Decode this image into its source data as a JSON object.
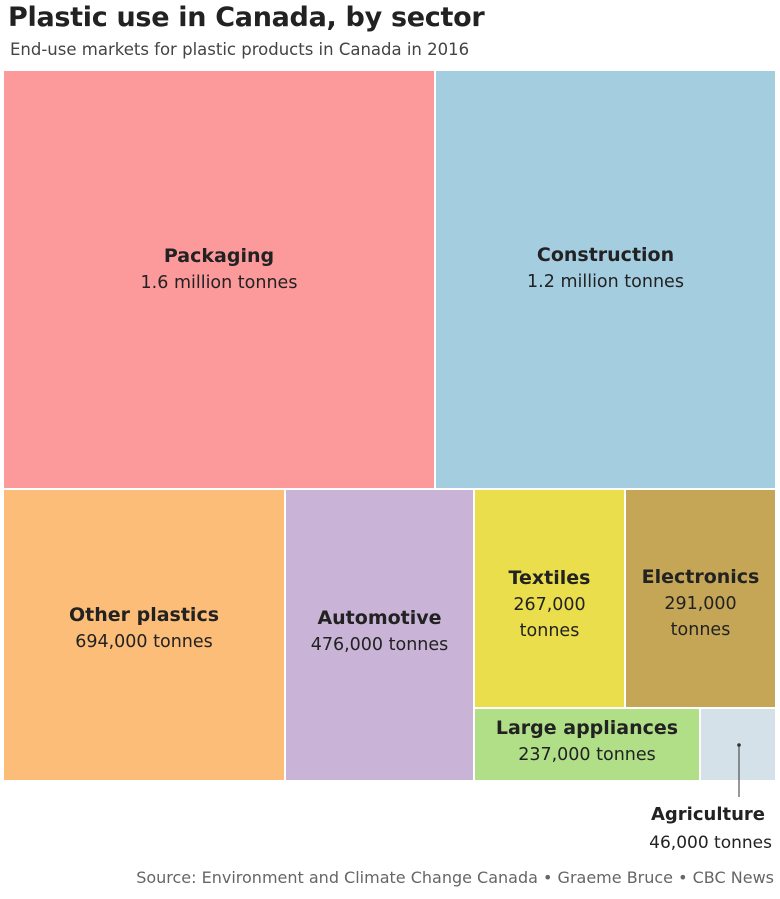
{
  "chart_data": {
    "type": "treemap",
    "title": "Plastic use in Canada, by sector",
    "subtitle": "End-use markets for plastic products in Canada in 2016",
    "unit": "tonnes",
    "items": [
      {
        "name": "Packaging",
        "value": 1600000,
        "label": "1.6 million tonnes",
        "label_lines": [
          "1.6 million tonnes"
        ],
        "color": "#fc999a"
      },
      {
        "name": "Construction",
        "value": 1200000,
        "label": "1.2 million tonnes",
        "label_lines": [
          "1.2 million tonnes"
        ],
        "color": "#a5cde0"
      },
      {
        "name": "Other plastics",
        "value": 694000,
        "label": "694,000 tonnes",
        "label_lines": [
          "694,000 tonnes"
        ],
        "color": "#fbbd78"
      },
      {
        "name": "Automotive",
        "value": 476000,
        "label": "476,000 tonnes",
        "label_lines": [
          "476,000 tonnes"
        ],
        "color": "#c9b3d6"
      },
      {
        "name": "Textiles",
        "value": 267000,
        "label": "267,000 tonnes",
        "label_lines": [
          "267,000",
          "tonnes"
        ],
        "color": "#ebde4c"
      },
      {
        "name": "Electronics",
        "value": 291000,
        "label": "291,000 tonnes",
        "label_lines": [
          "291,000",
          "tonnes"
        ],
        "color": "#c5a656"
      },
      {
        "name": "Large appliances",
        "value": 237000,
        "label": "237,000 tonnes",
        "label_lines": [
          "237,000 tonnes"
        ],
        "color": "#b0df88"
      },
      {
        "name": "Agriculture",
        "value": 46000,
        "label": "46,000 tonnes",
        "label_lines": [
          "46,000 tonnes"
        ],
        "color": "#d5e1e8",
        "callout": true
      }
    ],
    "source": "Source: Environment and Climate Change Canada • Graeme Bruce • CBC News"
  }
}
